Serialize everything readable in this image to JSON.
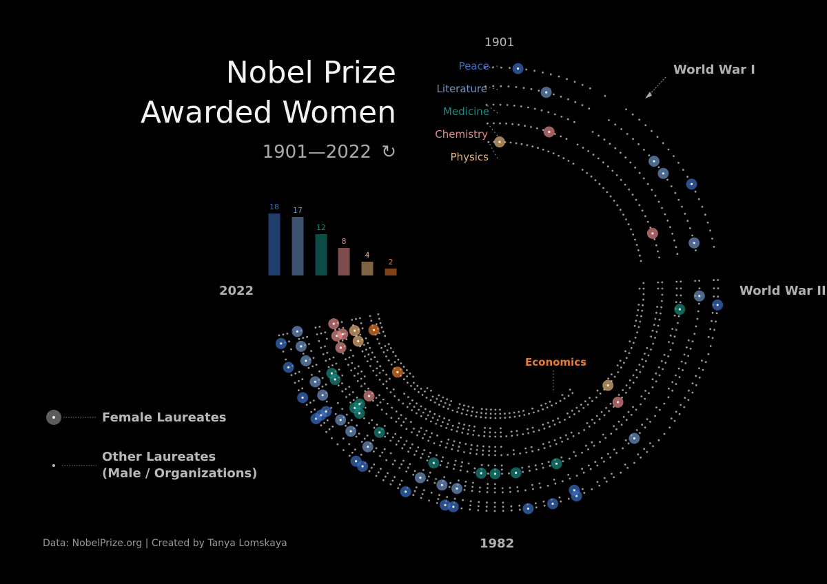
{
  "title_line1": "Nobel Prize",
  "title_line2": "Awarded Women",
  "subtitle": "1901—2022",
  "subtitle_icon": "refresh-icon",
  "credit": "Data: NobelPrize.org | Created by Tanya Lomskaya",
  "year_labels": {
    "start": "1901",
    "mid": "1982",
    "end": "2022"
  },
  "annotations": {
    "ww1": "World War I",
    "ww2": "World War II",
    "economics": "Economics"
  },
  "legend": {
    "female": "Female Laureates",
    "other_line1": "Other Laureates",
    "other_line2": "(Male / Organizations)"
  },
  "colors": {
    "background": "#000000",
    "dots": "#9a9a9a",
    "peace": "#3a6fc4",
    "literature": "#6f95c8",
    "medicine": "#1a8a82",
    "chemistry": "#e48a8a",
    "physics": "#e8b57a",
    "economics": "#e87a2a"
  },
  "chart_data": {
    "type": "radial-dot",
    "year_range": [
      1901,
      2022
    ],
    "categories": [
      {
        "name": "Peace",
        "female_count": 18,
        "color": "#3a6fc4",
        "female_years": [
          1905,
          1931,
          1946,
          1976,
          1976,
          1979,
          1982,
          1991,
          1992,
          1997,
          2003,
          2004,
          2011,
          2011,
          2011,
          2014,
          2018,
          2021
        ]
      },
      {
        "name": "Literature",
        "female_count": 17,
        "color": "#6f95c8",
        "female_years": [
          1909,
          1926,
          1928,
          1938,
          1945,
          1966,
          1991,
          1993,
          1996,
          2004,
          2007,
          2009,
          2013,
          2015,
          2018,
          2020,
          2022
        ]
      },
      {
        "name": "Medicine",
        "female_count": 12,
        "color": "#1a8a82",
        "female_years": [
          1947,
          1977,
          1983,
          1986,
          1988,
          1995,
          2004,
          2008,
          2009,
          2009,
          2014,
          2015
        ]
      },
      {
        "name": "Chemistry",
        "female_count": 8,
        "color": "#e48a8a",
        "female_years": [
          1911,
          1935,
          1964,
          2009,
          2018,
          2020,
          2020,
          2022
        ]
      },
      {
        "name": "Physics",
        "female_count": 4,
        "color": "#e8b57a",
        "female_years": [
          1903,
          1963,
          2018,
          2020
        ]
      },
      {
        "name": "Economics",
        "female_count": 2,
        "color": "#e87a2a",
        "female_years": [
          2009,
          2019
        ]
      }
    ],
    "bar_values": [
      18,
      17,
      12,
      8,
      4,
      2
    ]
  }
}
